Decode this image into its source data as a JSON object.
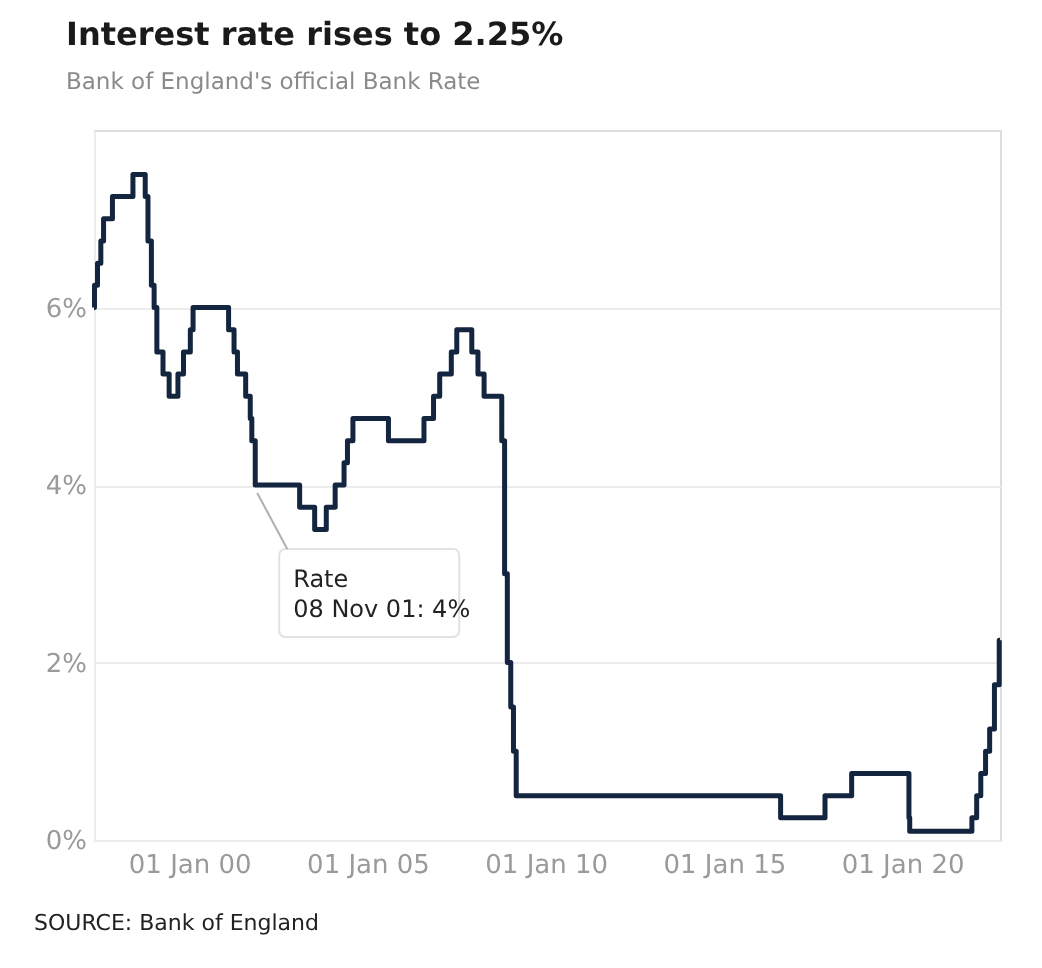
{
  "chart_data": {
    "type": "step",
    "title": "Interest rate rises to 2.25%",
    "subtitle": "Bank of England's official Bank Rate",
    "x": [
      "1997-05-01",
      "1997-05-06",
      "1997-06-06",
      "1997-07-10",
      "1997-08-07",
      "1997-11-06",
      "1998-06-04",
      "1998-10-08",
      "1998-11-05",
      "1998-12-10",
      "1999-01-07",
      "1999-02-04",
      "1999-04-08",
      "1999-06-10",
      "1999-09-08",
      "1999-11-04",
      "2000-01-13",
      "2000-02-10",
      "2001-02-08",
      "2001-04-05",
      "2001-05-10",
      "2001-08-02",
      "2001-09-18",
      "2001-10-04",
      "2001-11-08",
      "2003-02-06",
      "2003-07-10",
      "2003-11-06",
      "2004-02-05",
      "2004-05-06",
      "2004-06-10",
      "2004-08-05",
      "2005-08-04",
      "2006-08-03",
      "2006-11-09",
      "2007-01-11",
      "2007-05-10",
      "2007-07-05",
      "2007-12-06",
      "2008-02-07",
      "2008-04-10",
      "2008-10-08",
      "2008-11-06",
      "2008-12-04",
      "2009-01-08",
      "2009-02-05",
      "2009-03-05",
      "2016-08-04",
      "2017-11-02",
      "2018-08-02",
      "2020-03-11",
      "2020-03-19",
      "2021-12-16",
      "2022-02-03",
      "2022-03-17",
      "2022-05-05",
      "2022-06-16",
      "2022-08-04",
      "2022-09-22",
      "2022-09-30"
    ],
    "series": [
      {
        "color": "#14253f",
        "values": [
          6.0,
          6.25,
          6.5,
          6.75,
          7.0,
          7.25,
          7.5,
          7.25,
          6.75,
          6.25,
          6.0,
          5.5,
          5.25,
          5.0,
          5.25,
          5.5,
          5.75,
          6.0,
          5.75,
          5.5,
          5.25,
          5.0,
          4.75,
          4.5,
          4.0,
          3.75,
          3.5,
          3.75,
          4.0,
          4.25,
          4.5,
          4.75,
          4.5,
          4.75,
          5.0,
          5.25,
          5.5,
          5.75,
          5.5,
          5.25,
          5.0,
          4.5,
          3.0,
          2.0,
          1.5,
          1.0,
          0.5,
          0.25,
          0.5,
          0.75,
          0.25,
          0.1,
          0.25,
          0.5,
          0.75,
          1.0,
          1.25,
          1.75,
          2.25,
          2.25
        ]
      }
    ],
    "xlim": [
      "1997-05-01",
      "2022-09-30"
    ],
    "xticks": [
      {
        "value": "2000-01-01",
        "label": "01 Jan 00"
      },
      {
        "value": "2005-01-01",
        "label": "01 Jan 05"
      },
      {
        "value": "2010-01-01",
        "label": "01 Jan 10"
      },
      {
        "value": "2015-01-01",
        "label": "01 Jan 15"
      },
      {
        "value": "2020-01-01",
        "label": "01 Jan 20"
      }
    ],
    "ylim": [
      0,
      8
    ],
    "yticks": [
      {
        "value": 0,
        "label": "0%"
      },
      {
        "value": 2,
        "label": "2%"
      },
      {
        "value": 4,
        "label": "4%"
      },
      {
        "value": 6,
        "label": "6%"
      }
    ],
    "grid": "y",
    "line_style": "solid",
    "marker": "none",
    "annotations": [
      {
        "text": "Rate\n08 Nov 01: 4%",
        "x": "2001-11-08",
        "y": 4
      },
      "SOURCE: Bank of England"
    ]
  }
}
